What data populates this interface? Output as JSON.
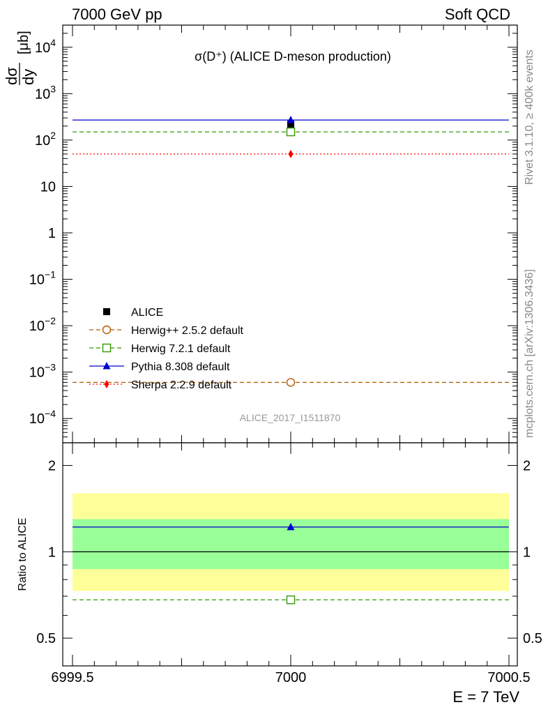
{
  "header": {
    "beam": "7000 GeV pp",
    "category": "Soft QCD",
    "side_note_rivet": "Rivet 3.1.10, ≥ 400k events",
    "side_note_mcplots": "mcplots.cern.ch [arXiv:1306.3436]",
    "watermark": "ALICE_2017_I1511870"
  },
  "chart_data": {
    "type": "scatter",
    "title": "σ(D⁺) (ALICE D-meson production)",
    "xlabel": "E = 7 TeV",
    "ylabel": "dσ/dy [μb]",
    "ratio_ylabel": "Ratio to ALICE",
    "xlim": [
      6999.5,
      7000.5
    ],
    "xticks": [
      {
        "value": 6999.5,
        "label": "6999.5"
      },
      {
        "value": 7000,
        "label": "7000"
      },
      {
        "value": 7000.5,
        "label": "7000.5"
      }
    ],
    "ylim_log": [
      3e-05,
      30000
    ],
    "yticks": [
      {
        "value": 0.0001,
        "base": "10",
        "exp": "−4"
      },
      {
        "value": 0.001,
        "base": "10",
        "exp": "−3"
      },
      {
        "value": 0.01,
        "base": "10",
        "exp": "−2"
      },
      {
        "value": 0.1,
        "base": "10",
        "exp": "−1"
      },
      {
        "value": 1,
        "base": "1",
        "exp": ""
      },
      {
        "value": 10,
        "base": "10",
        "exp": ""
      },
      {
        "value": 100,
        "base": "10",
        "exp": "2"
      },
      {
        "value": 1000,
        "base": "10",
        "exp": "3"
      },
      {
        "value": 10000,
        "base": "10",
        "exp": "4"
      }
    ],
    "ratio_ylim_log": [
      0.4,
      2.4
    ],
    "ratio_yticks": [
      {
        "value": 0.5,
        "label": "0.5"
      },
      {
        "value": 1,
        "label": "1"
      },
      {
        "value": 2,
        "label": "2"
      }
    ],
    "ratio_bands": {
      "inner": [
        0.87,
        1.3
      ],
      "outer": [
        0.73,
        1.6
      ],
      "inner_color": "#99ff99",
      "outer_color": "#ffff99"
    },
    "data": {
      "name": "ALICE",
      "x": 7000,
      "y": 220,
      "marker": "square",
      "color": "#000000"
    },
    "series": [
      {
        "name": "Herwig++ 2.5.2 default",
        "y": 0.0006,
        "ratio": null,
        "color": "#b35900",
        "marker": "circle-open",
        "line": "dashed"
      },
      {
        "name": "Herwig 7.2.1 default",
        "y": 150,
        "ratio": 0.68,
        "color": "#339900",
        "marker": "square-open",
        "line": "dashed"
      },
      {
        "name": "Pythia 8.308 default",
        "y": 270,
        "ratio": 1.22,
        "color": "#0000cc",
        "marker": "triangle",
        "line": "solid"
      },
      {
        "name": "Sherpa 2.2.9 default",
        "y": 50,
        "ratio": null,
        "color": "#ff0000",
        "marker": "diamond",
        "line": "dotted"
      }
    ]
  }
}
